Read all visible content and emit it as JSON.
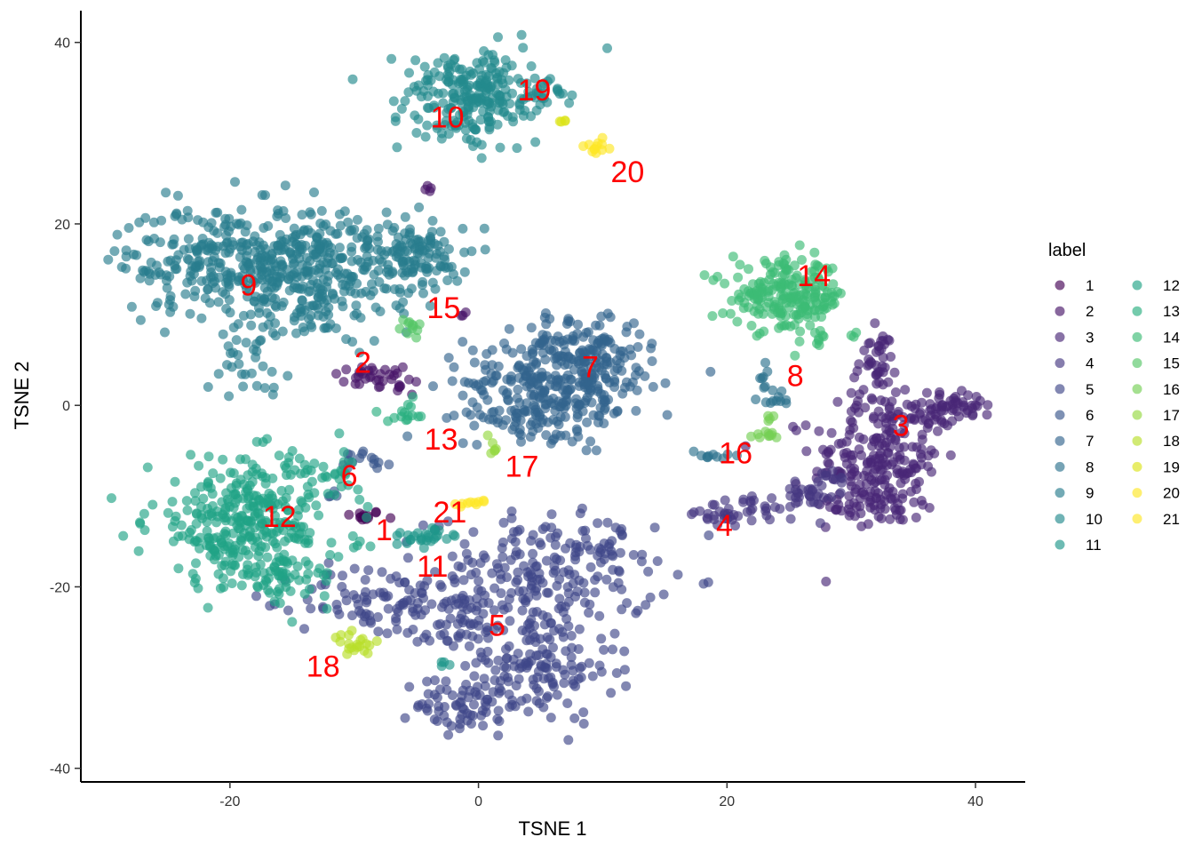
{
  "chart_data": {
    "type": "scatter",
    "xlabel": "TSNE 1",
    "ylabel": "TSNE 2",
    "xlim": [
      -32,
      44
    ],
    "ylim": [
      -41.5,
      43.5
    ],
    "x_ticks": [
      -20,
      0,
      20,
      40
    ],
    "x_tick_labels": [
      "-20",
      "0",
      "20",
      "40"
    ],
    "y_ticks": [
      -40,
      -20,
      0,
      20,
      40
    ],
    "y_tick_labels": [
      "-40",
      "-20",
      "0",
      "20",
      "40"
    ],
    "grid": false,
    "legend": {
      "title": "label",
      "placement": "right",
      "columns": 2
    },
    "point_opacity": 0.65,
    "label_color": "#ff0000",
    "series": [
      {
        "name": "1",
        "color": "#440154",
        "label_pos": [
          -7.6,
          -14.0
        ],
        "blobs": [
          {
            "c": [
              -9.3,
              -12.2
            ],
            "s": [
              0.8,
              0.3
            ],
            "n": 14
          }
        ]
      },
      {
        "name": "2",
        "color": "#481568",
        "label_pos": [
          -9.3,
          4.5
        ],
        "blobs": [
          {
            "c": [
              -8.5,
              3.2
            ],
            "s": [
              1.6,
              0.7
            ],
            "n": 30
          },
          {
            "c": [
              -5.5,
              2.0
            ],
            "s": [
              0.7,
              0.5
            ],
            "n": 8
          },
          {
            "c": [
              -3.7,
              23.8
            ],
            "s": [
              0.3,
              0.3
            ],
            "n": 4
          },
          {
            "c": [
              -1.2,
              10.0
            ],
            "s": [
              0.3,
              0.3
            ],
            "n": 3
          }
        ]
      },
      {
        "name": "3",
        "color": "#482677",
        "label_pos": [
          34.0,
          -2.5
        ],
        "blobs": [
          {
            "c": [
              32,
              -6
            ],
            "s": [
              2.6,
              3.2
            ],
            "n": 190
          },
          {
            "c": [
              32,
              -11
            ],
            "s": [
              1.8,
              1.5
            ],
            "n": 50
          },
          {
            "c": [
              38.5,
              0
            ],
            "s": [
              1.6,
              0.8
            ],
            "n": 45
          },
          {
            "c": [
              35.5,
              -1
            ],
            "s": [
              1.5,
              1
            ],
            "n": 25
          },
          {
            "c": [
              32.0,
              5.0
            ],
            "s": [
              0.8,
              1.6
            ],
            "n": 35
          },
          {
            "c": [
              31.0,
              1.0
            ],
            "s": [
              1,
              1.5
            ],
            "n": 20
          }
        ]
      },
      {
        "name": "4",
        "color": "#453781",
        "label_pos": [
          19.8,
          -13.5
        ],
        "blobs": [
          {
            "c": [
              23,
              -11.5
            ],
            "s": [
              2.5,
              0.7
            ],
            "n": 40
          },
          {
            "c": [
              26.5,
              -9.5
            ],
            "s": [
              1.5,
              0.6
            ],
            "n": 20
          },
          {
            "c": [
              19.5,
              -12.5
            ],
            "s": [
              1.0,
              0.4
            ],
            "n": 12
          },
          {
            "c": [
              28.5,
              -8
            ],
            "s": [
              0.8,
              0.6
            ],
            "n": 10
          }
        ]
      },
      {
        "name": "5",
        "color": "#3f4788",
        "label_pos": [
          1.5,
          -24.5
        ],
        "blobs": [
          {
            "c": [
              5,
              -19
            ],
            "s": [
              4.5,
              3.5
            ],
            "n": 230
          },
          {
            "c": [
              4,
              -29
            ],
            "s": [
              3.5,
              3.0
            ],
            "n": 140
          },
          {
            "c": [
              -1,
              -33
            ],
            "s": [
              2.0,
              1.5
            ],
            "n": 60
          },
          {
            "c": [
              -8.5,
              -21.5
            ],
            "s": [
              3.0,
              2.0
            ],
            "n": 80
          },
          {
            "c": [
              -2,
              -24
            ],
            "s": [
              2.0,
              2.0
            ],
            "n": 40
          },
          {
            "c": [
              11,
              -15
            ],
            "s": [
              1.0,
              1.0
            ],
            "n": 10
          }
        ]
      },
      {
        "name": "6",
        "color": "#39568c",
        "label_pos": [
          -10.4,
          -8.0
        ],
        "blobs": [
          {
            "c": [
              -8.5,
              -6.0
            ],
            "s": [
              0.8,
              0.6
            ],
            "n": 10
          },
          {
            "c": [
              -10.5,
              -6.0
            ],
            "s": [
              0.3,
              0.5
            ],
            "n": 5
          },
          {
            "c": [
              -11.5,
              -9.8
            ],
            "s": [
              0.5,
              0.3
            ],
            "n": 4
          }
        ]
      },
      {
        "name": "7",
        "color": "#32648e",
        "label_pos": [
          9.0,
          4.0
        ],
        "blobs": [
          {
            "c": [
              6.5,
              2.5
            ],
            "s": [
              3.8,
              2.8
            ],
            "n": 300
          },
          {
            "c": [
              8.5,
              6.5
            ],
            "s": [
              2.5,
              2.0
            ],
            "n": 80
          },
          {
            "c": [
              3.5,
              -1.5
            ],
            "s": [
              2.5,
              1.2
            ],
            "n": 40
          }
        ]
      },
      {
        "name": "8",
        "color": "#2d718e",
        "label_pos": [
          25.5,
          3.0
        ],
        "blobs": [
          {
            "c": [
              23.2,
              2.5
            ],
            "s": [
              0.3,
              1.0
            ],
            "n": 10
          },
          {
            "c": [
              24.5,
              1.0
            ],
            "s": [
              0.5,
              0.5
            ],
            "n": 8
          },
          {
            "c": [
              18.5,
              -5.5
            ],
            "s": [
              0.8,
              0.3
            ],
            "n": 10
          }
        ]
      },
      {
        "name": "9",
        "color": "#287d8e",
        "label_pos": [
          -18.5,
          13.0
        ],
        "blobs": [
          {
            "c": [
              -20,
              16
            ],
            "s": [
              4.5,
              3.0
            ],
            "n": 300
          },
          {
            "c": [
              -11,
              16
            ],
            "s": [
              4.0,
              3.0
            ],
            "n": 220
          },
          {
            "c": [
              -5,
              16
            ],
            "s": [
              2.0,
              2.0
            ],
            "n": 80
          },
          {
            "c": [
              -18,
              5.5
            ],
            "s": [
              1.4,
              2.0
            ],
            "n": 35
          },
          {
            "c": [
              -13,
              11
            ],
            "s": [
              3.0,
              2.0
            ],
            "n": 60
          }
        ]
      },
      {
        "name": "10",
        "color": "#238a8d",
        "label_pos": [
          -2.5,
          31.5
        ],
        "blobs": [
          {
            "c": [
              -0.5,
              35
            ],
            "s": [
              3.0,
              2.0
            ],
            "n": 180
          },
          {
            "c": [
              -0.5,
              31
            ],
            "s": [
              2.0,
              1.5
            ],
            "n": 60
          },
          {
            "c": [
              4.5,
              34
            ],
            "s": [
              1.0,
              1.0
            ],
            "n": 20
          }
        ]
      },
      {
        "name": "11",
        "color": "#1f968b",
        "label_pos": [
          -3.7,
          -18.0
        ],
        "blobs": [
          {
            "c": [
              -4.5,
              -14.5
            ],
            "s": [
              1.5,
              0.5
            ],
            "n": 28
          },
          {
            "c": [
              -2.8,
              -28.5
            ],
            "s": [
              0.3,
              0.3
            ],
            "n": 4
          }
        ]
      },
      {
        "name": "12",
        "color": "#20a386",
        "label_pos": [
          -16.0,
          -12.5
        ],
        "blobs": [
          {
            "c": [
              -18.5,
              -13
            ],
            "s": [
              4.0,
              3.5
            ],
            "n": 340
          },
          {
            "c": [
              -15.5,
              -19
            ],
            "s": [
              2.0,
              1.0
            ],
            "n": 40
          },
          {
            "c": [
              -13,
              -7.5
            ],
            "s": [
              1.5,
              0.8
            ],
            "n": 20
          }
        ]
      },
      {
        "name": "13",
        "color": "#29af7f",
        "label_pos": [
          -3.0,
          -4.0
        ],
        "blobs": [
          {
            "c": [
              -5.5,
              -1.2
            ],
            "s": [
              0.9,
              0.3
            ],
            "n": 12
          },
          {
            "c": [
              -5.5,
              0.2
            ],
            "s": [
              0.3,
              0.3
            ],
            "n": 3
          }
        ]
      },
      {
        "name": "14",
        "color": "#3cbc75",
        "label_pos": [
          27.0,
          14.0
        ],
        "blobs": [
          {
            "c": [
              25,
              12
            ],
            "s": [
              2.3,
              1.9
            ],
            "n": 200
          },
          {
            "c": [
              22.2,
              12.2
            ],
            "s": [
              0.5,
              0.3
            ],
            "n": 8
          },
          {
            "c": [
              27.5,
              7.5
            ],
            "s": [
              0.6,
              0.5
            ],
            "n": 8
          },
          {
            "c": [
              30,
              8.0
            ],
            "s": [
              0.3,
              0.3
            ],
            "n": 3
          }
        ]
      },
      {
        "name": "15",
        "color": "#56c667",
        "label_pos": [
          -2.8,
          10.5
        ],
        "blobs": [
          {
            "c": [
              -5.2,
              8.5
            ],
            "s": [
              0.5,
              0.4
            ],
            "n": 8
          },
          {
            "c": [
              -6.0,
              9.0
            ],
            "s": [
              0.3,
              0.3
            ],
            "n": 3
          }
        ]
      },
      {
        "name": "16",
        "color": "#75d054",
        "label_pos": [
          20.7,
          -5.5
        ],
        "blobs": [
          {
            "c": [
              23.0,
              -3.3
            ],
            "s": [
              0.7,
              0.3
            ],
            "n": 10
          },
          {
            "c": [
              23.5,
              -1.5
            ],
            "s": [
              0.3,
              0.4
            ],
            "n": 4
          }
        ]
      },
      {
        "name": "17",
        "color": "#95d840",
        "label_pos": [
          3.5,
          -7.0
        ],
        "blobs": [
          {
            "c": [
              1.2,
              -4.7
            ],
            "s": [
              0.2,
              0.3
            ],
            "n": 5
          },
          {
            "c": [
              0.8,
              -3.3
            ],
            "s": [
              0.1,
              0.1
            ],
            "n": 1
          }
        ]
      },
      {
        "name": "18",
        "color": "#b8de29",
        "label_pos": [
          -12.5,
          -29.0
        ],
        "blobs": [
          {
            "c": [
              -10.0,
              -26.5
            ],
            "s": [
              0.8,
              0.6
            ],
            "n": 20
          }
        ]
      },
      {
        "name": "19",
        "color": "#dce318",
        "label_pos": [
          4.5,
          34.5
        ],
        "blobs": [
          {
            "c": [
              6.9,
              31.3
            ],
            "s": [
              0.2,
              0.1
            ],
            "n": 4
          }
        ]
      },
      {
        "name": "20",
        "color": "#fde725",
        "label_pos": [
          12.0,
          25.5
        ],
        "blobs": [
          {
            "c": [
              9.5,
              28.5
            ],
            "s": [
              0.4,
              0.4
            ],
            "n": 12
          }
        ]
      },
      {
        "name": "21",
        "color": "#fde725",
        "label_pos": [
          -2.3,
          -12.0
        ],
        "blobs": [
          {
            "c": [
              -0.2,
              -10.7
            ],
            "s": [
              0.5,
              0.2
            ],
            "n": 10
          }
        ]
      }
    ]
  }
}
